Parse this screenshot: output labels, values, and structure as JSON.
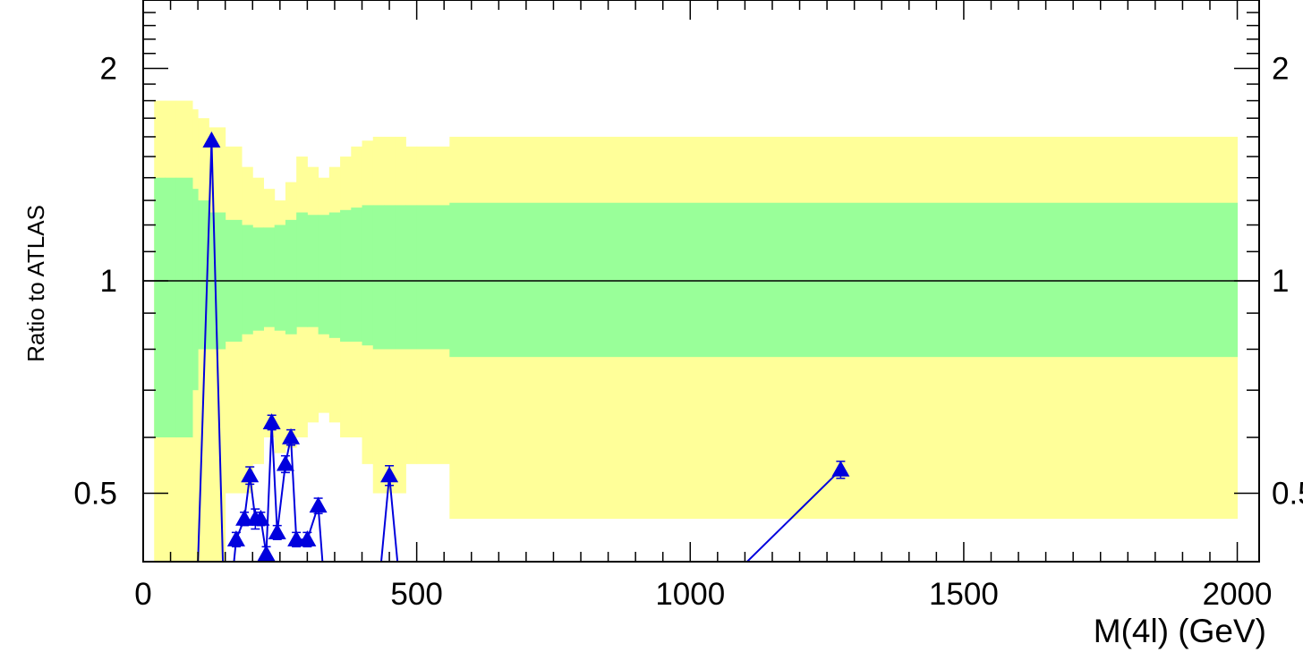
{
  "chart_data": {
    "type": "line",
    "title": "",
    "xlabel": "M(4l) (GeV)",
    "ylabel": "Ratio to ATLAS",
    "x_axis": {
      "min": 0,
      "max": 2040,
      "ticks": [
        0,
        500,
        1000,
        1500,
        2000
      ],
      "tick_labels": [
        "0",
        "500",
        "1000",
        "1500",
        "2000"
      ]
    },
    "y_axis": {
      "scale": "log",
      "min": 0.4,
      "max": 2.5,
      "ticks": [
        0.5,
        1,
        2
      ],
      "tick_labels": [
        "0.5",
        "1",
        "2"
      ]
    },
    "reference_line": 1,
    "bands": [
      {
        "name": "",
        "color": "#ffff99",
        "edges": [
          20,
          40,
          60,
          90,
          100,
          120,
          150,
          180,
          200,
          220,
          240,
          260,
          280,
          300,
          320,
          340,
          360,
          380,
          400,
          420,
          440,
          460,
          480,
          500,
          560,
          2000
        ],
        "low": [
          0.35,
          0.35,
          0.35,
          0.4,
          0.35,
          0.4,
          0.5,
          0.5,
          0.55,
          0.6,
          0.57,
          0.58,
          0.6,
          0.63,
          0.65,
          0.63,
          0.6,
          0.6,
          0.55,
          0.5,
          0.5,
          0.5,
          0.55,
          0.55,
          0.46
        ],
        "high": [
          1.8,
          1.8,
          1.8,
          1.75,
          1.7,
          1.65,
          1.55,
          1.45,
          1.4,
          1.35,
          1.3,
          1.38,
          1.5,
          1.45,
          1.4,
          1.45,
          1.5,
          1.55,
          1.58,
          1.6,
          1.6,
          1.6,
          1.55,
          1.55,
          1.6
        ]
      },
      {
        "name": "",
        "color": "#99ff99",
        "edges": [
          20,
          40,
          60,
          90,
          100,
          120,
          150,
          180,
          200,
          220,
          240,
          260,
          280,
          300,
          320,
          340,
          360,
          380,
          400,
          420,
          440,
          460,
          480,
          500,
          560,
          2000
        ],
        "low": [
          0.6,
          0.6,
          0.6,
          0.7,
          0.8,
          0.8,
          0.82,
          0.84,
          0.85,
          0.86,
          0.85,
          0.84,
          0.86,
          0.86,
          0.84,
          0.83,
          0.82,
          0.82,
          0.81,
          0.8,
          0.8,
          0.8,
          0.8,
          0.8,
          0.78
        ],
        "high": [
          1.4,
          1.4,
          1.4,
          1.35,
          1.3,
          1.25,
          1.22,
          1.2,
          1.19,
          1.19,
          1.2,
          1.22,
          1.25,
          1.24,
          1.24,
          1.25,
          1.26,
          1.27,
          1.28,
          1.28,
          1.28,
          1.28,
          1.28,
          1.28,
          1.29
        ]
      }
    ],
    "series": [
      {
        "name": "",
        "color": "#0000dd",
        "marker": "triangle",
        "x": [
          95,
          125,
          150,
          170,
          185,
          195,
          205,
          215,
          225,
          235,
          245,
          260,
          270,
          280,
          300,
          320,
          340,
          420,
          450,
          480,
          940,
          1275
        ],
        "y": [
          0.3,
          1.58,
          0.3,
          0.43,
          0.46,
          0.53,
          0.46,
          0.46,
          0.41,
          0.63,
          0.44,
          0.55,
          0.6,
          0.43,
          0.43,
          0.48,
          0.3,
          0.3,
          0.53,
          0.3,
          0.3,
          0.54
        ],
        "err": [
          0,
          0,
          0,
          0.01,
          0.01,
          0.015,
          0.015,
          0.01,
          0.01,
          0.015,
          0.01,
          0.015,
          0.015,
          0.01,
          0.01,
          0.012,
          0,
          0,
          0.017,
          0,
          0,
          0.015
        ],
        "hidden_points": [
          0,
          2,
          16,
          17,
          19,
          20
        ]
      }
    ]
  }
}
